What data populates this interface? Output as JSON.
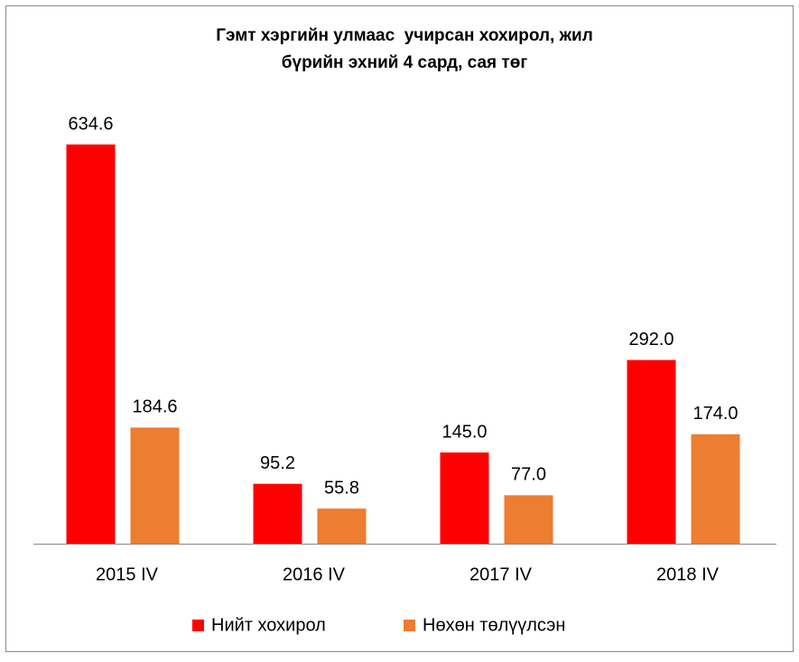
{
  "chart_data": {
    "type": "bar",
    "title": [
      "Гэмт хэргийн улмаас  учирсан хохирол, жил",
      "бүрийн эхний 4 сард, сая төг"
    ],
    "categories": [
      "2015 IV",
      "2016 IV",
      "2017 IV",
      "2018 IV"
    ],
    "series": [
      {
        "name": "Нийт хохирол",
        "color": "#ff0000",
        "values": [
          634.6,
          95.2,
          145.0,
          292.0
        ],
        "value_labels": [
          "634.6",
          "95.2",
          "145.0",
          "292.0"
        ]
      },
      {
        "name": "Нөхөн төлүүлсэн",
        "color": "#ed7d31",
        "values": [
          184.6,
          55.8,
          77.0,
          174.0
        ],
        "value_labels": [
          "184.6",
          "55.8",
          "77.0",
          "174.0"
        ]
      }
    ],
    "legend": "bottom"
  }
}
